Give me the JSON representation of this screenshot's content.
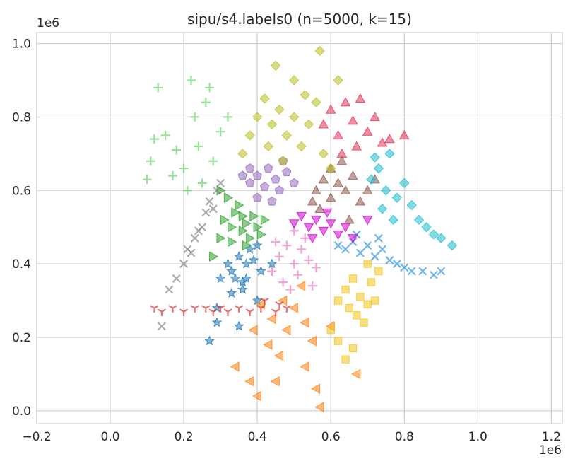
{
  "chart_data": {
    "type": "scatter",
    "title": "sipu/s4.labels0 (n=5000, k=15)",
    "xlabel": "",
    "ylabel": "",
    "x_offset_label": "1e6",
    "y_offset_label": "1e6",
    "xlim": [
      -0.2,
      1.23
    ],
    "ylim": [
      -0.035,
      1.03
    ],
    "xticks": [
      -0.2,
      0.0,
      0.2,
      0.4,
      0.6,
      0.8,
      1.0,
      1.2
    ],
    "xtick_labels": [
      "−0.2",
      "0.0",
      "0.2",
      "0.4",
      "0.6",
      "0.8",
      "1.0",
      "1.2"
    ],
    "yticks": [
      0.0,
      0.2,
      0.4,
      0.6,
      0.8,
      1.0
    ],
    "ytick_labels": [
      "0.0",
      "0.2",
      "0.4",
      "0.6",
      "0.8",
      "1.0"
    ],
    "grid": true,
    "clusters": [
      {
        "color": "#1f77b4",
        "marker": "star",
        "points": [
          [
            0.27,
            0.19
          ],
          [
            0.29,
            0.24
          ],
          [
            0.29,
            0.28
          ],
          [
            0.33,
            0.32
          ],
          [
            0.33,
            0.38
          ],
          [
            0.34,
            0.36
          ],
          [
            0.35,
            0.42
          ],
          [
            0.36,
            0.33
          ],
          [
            0.36,
            0.35
          ],
          [
            0.37,
            0.4
          ],
          [
            0.38,
            0.44
          ],
          [
            0.39,
            0.41
          ],
          [
            0.4,
            0.45
          ],
          [
            0.41,
            0.38
          ],
          [
            0.4,
            0.3
          ],
          [
            0.37,
            0.36
          ],
          [
            0.35,
            0.23
          ],
          [
            0.44,
            0.4
          ],
          [
            0.3,
            0.36
          ],
          [
            0.32,
            0.4
          ]
        ]
      },
      {
        "color": "#ff7f0e",
        "marker": "triangle-left",
        "points": [
          [
            0.34,
            0.12
          ],
          [
            0.38,
            0.08
          ],
          [
            0.4,
            0.04
          ],
          [
            0.45,
            0.08
          ],
          [
            0.46,
            0.15
          ],
          [
            0.48,
            0.22
          ],
          [
            0.5,
            0.28
          ],
          [
            0.53,
            0.24
          ],
          [
            0.55,
            0.19
          ],
          [
            0.56,
            0.06
          ],
          [
            0.57,
            0.01
          ],
          [
            0.43,
            0.18
          ],
          [
            0.44,
            0.25
          ],
          [
            0.41,
            0.29
          ],
          [
            0.47,
            0.3
          ],
          [
            0.52,
            0.34
          ],
          [
            0.6,
            0.23
          ],
          [
            0.67,
            0.1
          ],
          [
            0.53,
            0.12
          ],
          [
            0.39,
            0.22
          ]
        ]
      },
      {
        "color": "#2ca02c",
        "marker": "triangle-right",
        "points": [
          [
            0.28,
            0.42
          ],
          [
            0.3,
            0.47
          ],
          [
            0.31,
            0.52
          ],
          [
            0.33,
            0.5
          ],
          [
            0.34,
            0.54
          ],
          [
            0.36,
            0.49
          ],
          [
            0.37,
            0.51
          ],
          [
            0.38,
            0.47
          ],
          [
            0.39,
            0.53
          ],
          [
            0.4,
            0.5
          ],
          [
            0.42,
            0.52
          ],
          [
            0.35,
            0.56
          ],
          [
            0.3,
            0.6
          ],
          [
            0.32,
            0.58
          ],
          [
            0.37,
            0.45
          ],
          [
            0.41,
            0.48
          ],
          [
            0.33,
            0.46
          ],
          [
            0.36,
            0.53
          ]
        ]
      },
      {
        "color": "#d62728",
        "marker": "tri-down",
        "points": [
          [
            0.12,
            0.28
          ],
          [
            0.14,
            0.27
          ],
          [
            0.17,
            0.28
          ],
          [
            0.2,
            0.27
          ],
          [
            0.23,
            0.28
          ],
          [
            0.26,
            0.28
          ],
          [
            0.28,
            0.27
          ],
          [
            0.3,
            0.28
          ],
          [
            0.32,
            0.27
          ],
          [
            0.35,
            0.28
          ],
          [
            0.38,
            0.27
          ],
          [
            0.41,
            0.28
          ],
          [
            0.45,
            0.27
          ],
          [
            0.48,
            0.28
          ],
          [
            0.42,
            0.3
          ],
          [
            0.46,
            0.29
          ]
        ]
      },
      {
        "color": "#9467bd",
        "marker": "pentagon",
        "points": [
          [
            0.38,
            0.62
          ],
          [
            0.4,
            0.64
          ],
          [
            0.42,
            0.61
          ],
          [
            0.43,
            0.66
          ],
          [
            0.45,
            0.63
          ],
          [
            0.46,
            0.6
          ],
          [
            0.48,
            0.65
          ],
          [
            0.4,
            0.58
          ],
          [
            0.44,
            0.57
          ],
          [
            0.5,
            0.62
          ],
          [
            0.38,
            0.66
          ],
          [
            0.47,
            0.68
          ],
          [
            0.36,
            0.64
          ]
        ]
      },
      {
        "color": "#8c564b",
        "marker": "triangle-up",
        "points": [
          [
            0.56,
            0.6
          ],
          [
            0.58,
            0.63
          ],
          [
            0.6,
            0.58
          ],
          [
            0.62,
            0.62
          ],
          [
            0.64,
            0.6
          ],
          [
            0.66,
            0.64
          ],
          [
            0.68,
            0.57
          ],
          [
            0.7,
            0.6
          ],
          [
            0.6,
            0.66
          ],
          [
            0.63,
            0.68
          ],
          [
            0.57,
            0.55
          ],
          [
            0.65,
            0.52
          ],
          [
            0.72,
            0.63
          ],
          [
            0.55,
            0.57
          ]
        ]
      },
      {
        "color": "#e377c2",
        "marker": "plus",
        "points": [
          [
            0.44,
            0.38
          ],
          [
            0.46,
            0.42
          ],
          [
            0.47,
            0.35
          ],
          [
            0.48,
            0.45
          ],
          [
            0.5,
            0.4
          ],
          [
            0.51,
            0.37
          ],
          [
            0.52,
            0.44
          ],
          [
            0.54,
            0.41
          ],
          [
            0.56,
            0.39
          ],
          [
            0.49,
            0.33
          ],
          [
            0.53,
            0.47
          ],
          [
            0.45,
            0.46
          ],
          [
            0.55,
            0.34
          ],
          [
            0.5,
            0.49
          ]
        ]
      },
      {
        "color": "#7f7f7f",
        "marker": "x",
        "points": [
          [
            0.14,
            0.23
          ],
          [
            0.16,
            0.33
          ],
          [
            0.18,
            0.36
          ],
          [
            0.2,
            0.4
          ],
          [
            0.22,
            0.43
          ],
          [
            0.23,
            0.47
          ],
          [
            0.25,
            0.5
          ],
          [
            0.26,
            0.54
          ],
          [
            0.27,
            0.57
          ],
          [
            0.29,
            0.6
          ],
          [
            0.3,
            0.62
          ],
          [
            0.21,
            0.44
          ],
          [
            0.24,
            0.49
          ],
          [
            0.28,
            0.55
          ]
        ]
      },
      {
        "color": "#bcbd22",
        "marker": "diamond",
        "points": [
          [
            0.4,
            0.8
          ],
          [
            0.42,
            0.85
          ],
          [
            0.44,
            0.78
          ],
          [
            0.46,
            0.82
          ],
          [
            0.48,
            0.75
          ],
          [
            0.5,
            0.8
          ],
          [
            0.52,
            0.72
          ],
          [
            0.54,
            0.78
          ],
          [
            0.56,
            0.84
          ],
          [
            0.58,
            0.7
          ],
          [
            0.45,
            0.94
          ],
          [
            0.5,
            0.9
          ],
          [
            0.57,
            0.98
          ],
          [
            0.36,
            0.7
          ],
          [
            0.38,
            0.75
          ],
          [
            0.6,
            0.66
          ],
          [
            0.62,
            0.9
          ],
          [
            0.47,
            0.68
          ],
          [
            0.53,
            0.86
          ],
          [
            0.43,
            0.72
          ]
        ]
      },
      {
        "color": "#17becf",
        "marker": "diamond",
        "points": [
          [
            0.71,
            0.63
          ],
          [
            0.73,
            0.66
          ],
          [
            0.75,
            0.6
          ],
          [
            0.76,
            0.7
          ],
          [
            0.78,
            0.58
          ],
          [
            0.8,
            0.62
          ],
          [
            0.82,
            0.56
          ],
          [
            0.84,
            0.52
          ],
          [
            0.86,
            0.5
          ],
          [
            0.88,
            0.48
          ],
          [
            0.9,
            0.47
          ],
          [
            0.93,
            0.45
          ],
          [
            0.74,
            0.55
          ],
          [
            0.77,
            0.52
          ],
          [
            0.72,
            0.69
          ]
        ]
      },
      {
        "color": "#1f8fe0",
        "marker": "x",
        "points": [
          [
            0.62,
            0.45
          ],
          [
            0.64,
            0.44
          ],
          [
            0.66,
            0.46
          ],
          [
            0.68,
            0.43
          ],
          [
            0.7,
            0.45
          ],
          [
            0.72,
            0.42
          ],
          [
            0.74,
            0.44
          ],
          [
            0.76,
            0.41
          ],
          [
            0.78,
            0.4
          ],
          [
            0.8,
            0.39
          ],
          [
            0.82,
            0.38
          ],
          [
            0.85,
            0.38
          ],
          [
            0.88,
            0.37
          ],
          [
            0.9,
            0.38
          ],
          [
            0.67,
            0.48
          ],
          [
            0.73,
            0.47
          ]
        ]
      },
      {
        "color": "#dd3355",
        "marker": "triangle-up",
        "points": [
          [
            0.58,
            0.78
          ],
          [
            0.6,
            0.82
          ],
          [
            0.62,
            0.75
          ],
          [
            0.64,
            0.84
          ],
          [
            0.66,
            0.79
          ],
          [
            0.68,
            0.85
          ],
          [
            0.7,
            0.76
          ],
          [
            0.72,
            0.8
          ],
          [
            0.74,
            0.73
          ],
          [
            0.76,
            0.74
          ],
          [
            0.8,
            0.75
          ],
          [
            0.67,
            0.72
          ],
          [
            0.63,
            0.7
          ]
        ]
      },
      {
        "color": "#cc00cc",
        "marker": "triangle-down",
        "points": [
          [
            0.5,
            0.51
          ],
          [
            0.52,
            0.53
          ],
          [
            0.54,
            0.5
          ],
          [
            0.56,
            0.52
          ],
          [
            0.58,
            0.49
          ],
          [
            0.6,
            0.51
          ],
          [
            0.62,
            0.48
          ],
          [
            0.64,
            0.5
          ],
          [
            0.66,
            0.47
          ],
          [
            0.7,
            0.52
          ],
          [
            0.55,
            0.47
          ],
          [
            0.59,
            0.54
          ]
        ]
      },
      {
        "color": "#f5c518",
        "marker": "square",
        "points": [
          [
            0.62,
            0.3
          ],
          [
            0.64,
            0.33
          ],
          [
            0.65,
            0.28
          ],
          [
            0.66,
            0.36
          ],
          [
            0.67,
            0.26
          ],
          [
            0.68,
            0.31
          ],
          [
            0.69,
            0.24
          ],
          [
            0.7,
            0.29
          ],
          [
            0.71,
            0.35
          ],
          [
            0.72,
            0.3
          ],
          [
            0.73,
            0.38
          ],
          [
            0.62,
            0.19
          ],
          [
            0.64,
            0.14
          ],
          [
            0.6,
            0.22
          ],
          [
            0.7,
            0.4
          ],
          [
            0.66,
            0.17
          ]
        ]
      },
      {
        "color": "#5fd35f",
        "marker": "plus",
        "points": [
          [
            0.1,
            0.63
          ],
          [
            0.11,
            0.68
          ],
          [
            0.12,
            0.74
          ],
          [
            0.13,
            0.88
          ],
          [
            0.15,
            0.75
          ],
          [
            0.17,
            0.64
          ],
          [
            0.18,
            0.71
          ],
          [
            0.2,
            0.66
          ],
          [
            0.22,
            0.9
          ],
          [
            0.23,
            0.8
          ],
          [
            0.24,
            0.72
          ],
          [
            0.26,
            0.84
          ],
          [
            0.28,
            0.68
          ],
          [
            0.3,
            0.76
          ],
          [
            0.32,
            0.8
          ],
          [
            0.21,
            0.6
          ],
          [
            0.25,
            0.62
          ],
          [
            0.27,
            0.88
          ]
        ]
      }
    ]
  }
}
